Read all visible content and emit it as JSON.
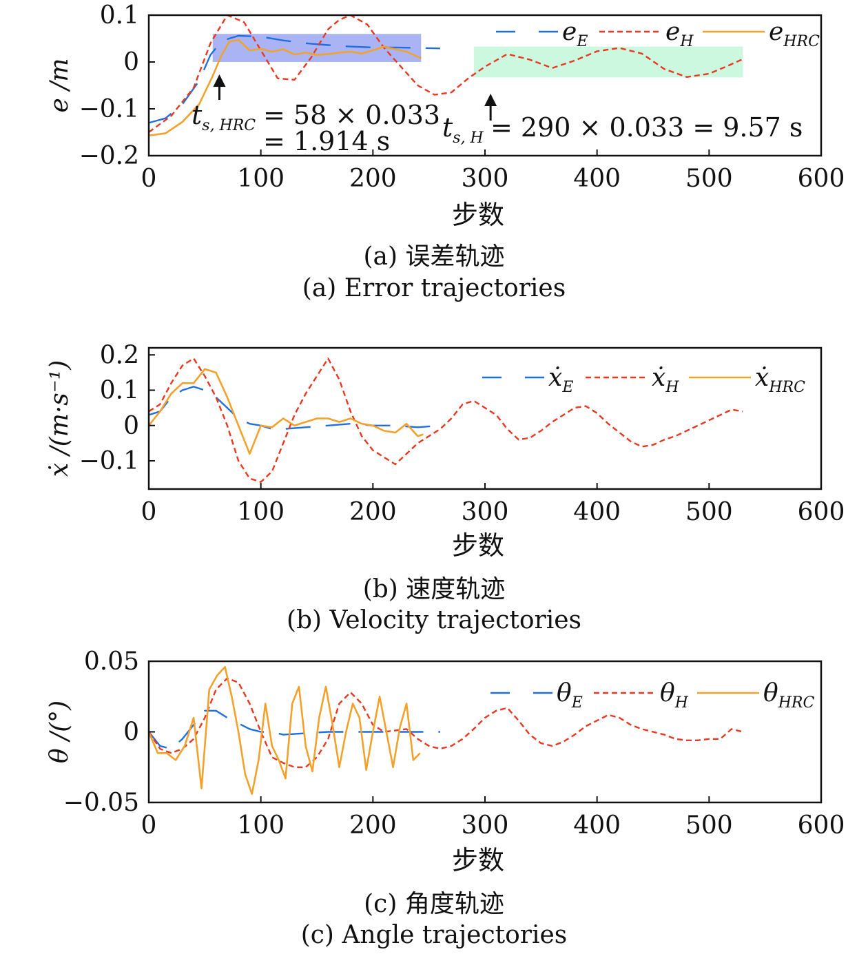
{
  "colors": {
    "E": "#1f6fe0",
    "H": "#e8381f",
    "HRC": "#f2a22c",
    "blueBox": "#8e9bf0",
    "greenBox": "#c6f7dc"
  },
  "chart_data": [
    {
      "type": "line",
      "panel": "a",
      "ylabel": "e /m",
      "xlabel": "步数",
      "caption_cn": "(a) 误差轨迹",
      "caption_en": "(a) Error trajectories",
      "xlim": [
        0,
        600
      ],
      "ylim": [
        -0.2,
        0.1
      ],
      "xticks": [
        "0",
        "100",
        "200",
        "300",
        "400",
        "500",
        "600"
      ],
      "yticks": [
        "0.1",
        "0",
        "−0.1",
        "−0.2"
      ],
      "legend": {
        "placement": "top-right",
        "entries": [
          {
            "key": "E",
            "base": "e",
            "sub": "E"
          },
          {
            "key": "H",
            "base": "e",
            "sub": "H"
          },
          {
            "key": "HRC",
            "base": "e",
            "sub": "HRC"
          }
        ]
      },
      "annotations": {
        "hrc_var": "t",
        "hrc_sub": "s, HRC",
        "hrc_line1": "= 58 × 0.033",
        "hrc_line2": "= 1.914 s",
        "h_var": "t",
        "h_sub": "s, H",
        "h_text": "= 290 × 0.033 = 9.57 s",
        "hrc_arrow_x": 63,
        "h_arrow_x": 305
      },
      "shaded_regions": [
        {
          "x": [
            57,
            243
          ],
          "y": [
            0.0,
            0.06
          ]
        },
        {
          "x": [
            290,
            530
          ],
          "y": [
            -0.033,
            0.033
          ]
        }
      ],
      "series": [
        {
          "key": "E",
          "name": "e_E",
          "x": [
            0,
            15,
            30,
            45,
            55,
            65,
            80,
            100,
            120,
            140,
            160,
            180,
            200,
            220,
            243,
            260
          ],
          "y": [
            -0.13,
            -0.12,
            -0.09,
            -0.04,
            0.015,
            0.045,
            0.056,
            0.054,
            0.046,
            0.04,
            0.036,
            0.033,
            0.031,
            0.031,
            0.03,
            0.029
          ]
        },
        {
          "key": "H",
          "name": "e_H",
          "x": [
            0,
            20,
            40,
            55,
            70,
            85,
            100,
            115,
            130,
            145,
            160,
            170,
            180,
            195,
            210,
            225,
            240,
            255,
            270,
            285,
            300,
            320,
            340,
            360,
            380,
            400,
            420,
            440,
            460,
            480,
            500,
            515,
            530
          ],
          "y": [
            -0.15,
            -0.115,
            -0.055,
            0.04,
            0.1,
            0.085,
            0.025,
            -0.035,
            -0.038,
            0.01,
            0.07,
            0.09,
            0.1,
            0.08,
            0.03,
            -0.01,
            -0.05,
            -0.07,
            -0.065,
            -0.035,
            -0.01,
            0.017,
            0.005,
            -0.013,
            0.003,
            0.023,
            0.03,
            0.018,
            -0.015,
            -0.032,
            -0.025,
            -0.01,
            0.006
          ]
        },
        {
          "key": "HRC",
          "name": "e_HRC",
          "x": [
            0,
            15,
            30,
            45,
            57,
            65,
            72,
            80,
            90,
            100,
            110,
            120,
            130,
            140,
            150,
            160,
            170,
            180,
            190,
            200,
            210,
            220,
            230,
            243
          ],
          "y": [
            -0.157,
            -0.152,
            -0.128,
            -0.09,
            -0.03,
            0.015,
            0.044,
            0.047,
            0.025,
            0.028,
            0.022,
            0.027,
            0.016,
            0.02,
            0.015,
            0.017,
            0.02,
            0.022,
            0.018,
            0.025,
            0.033,
            0.027,
            0.022,
            0.008
          ]
        }
      ]
    },
    {
      "type": "line",
      "panel": "b",
      "ylabel": "ẋ /(m·s⁻¹)",
      "xlabel": "步数",
      "caption_cn": "(b) 速度轨迹",
      "caption_en": "(b) Velocity trajectories",
      "xlim": [
        0,
        600
      ],
      "ylim": [
        -0.18,
        0.22
      ],
      "xticks": [
        "0",
        "100",
        "200",
        "300",
        "400",
        "500",
        "600"
      ],
      "yticks": [
        "0.2",
        "0.1",
        "0",
        "−0.1"
      ],
      "legend": {
        "placement": "top-right",
        "entries": [
          {
            "key": "E",
            "base": "ẋ",
            "sub": "E"
          },
          {
            "key": "H",
            "base": "ẋ",
            "sub": "H"
          },
          {
            "key": "HRC",
            "base": "ẋ",
            "sub": "HRC"
          }
        ]
      },
      "series": [
        {
          "key": "E",
          "name": "ẋ_E",
          "x": [
            0,
            10,
            20,
            30,
            40,
            50,
            60,
            70,
            80,
            90,
            100,
            110,
            120,
            140,
            160,
            180,
            200,
            220,
            240,
            260
          ],
          "y": [
            0.03,
            0.04,
            0.08,
            0.1,
            0.11,
            0.1,
            0.08,
            0.05,
            0.02,
            0.005,
            0.0,
            -0.01,
            -0.01,
            -0.005,
            0.0,
            0.005,
            0.0,
            0.0,
            -0.005,
            0.0
          ]
        },
        {
          "key": "H",
          "name": "ẋ_H",
          "x": [
            0,
            10,
            20,
            30,
            40,
            50,
            60,
            70,
            80,
            90,
            100,
            110,
            120,
            130,
            140,
            150,
            160,
            170,
            180,
            190,
            200,
            210,
            220,
            230,
            240,
            250,
            260,
            270,
            280,
            290,
            300,
            310,
            320,
            330,
            340,
            350,
            360,
            370,
            380,
            390,
            400,
            410,
            420,
            430,
            440,
            450,
            460,
            470,
            480,
            490,
            500,
            510,
            520,
            530
          ],
          "y": [
            0.04,
            0.06,
            0.12,
            0.17,
            0.19,
            0.14,
            0.08,
            0.0,
            -0.1,
            -0.15,
            -0.16,
            -0.13,
            -0.05,
            0.03,
            0.09,
            0.14,
            0.19,
            0.13,
            0.04,
            -0.03,
            -0.07,
            -0.09,
            -0.11,
            -0.08,
            -0.05,
            -0.03,
            -0.01,
            0.02,
            0.06,
            0.07,
            0.05,
            0.03,
            -0.01,
            -0.04,
            -0.035,
            -0.015,
            0.01,
            0.03,
            0.05,
            0.055,
            0.035,
            0.005,
            -0.02,
            -0.045,
            -0.06,
            -0.055,
            -0.04,
            -0.03,
            -0.015,
            0.0,
            0.015,
            0.03,
            0.045,
            0.04
          ]
        },
        {
          "key": "HRC",
          "name": "ẋ_HRC",
          "x": [
            0,
            10,
            20,
            30,
            40,
            50,
            60,
            70,
            80,
            90,
            100,
            110,
            120,
            130,
            140,
            150,
            160,
            170,
            180,
            190,
            200,
            210,
            220,
            230,
            240,
            245
          ],
          "y": [
            0.0,
            0.04,
            0.09,
            0.12,
            0.12,
            0.16,
            0.15,
            0.08,
            0.0,
            -0.08,
            0.0,
            -0.005,
            0.02,
            0.0,
            0.01,
            0.02,
            0.02,
            0.01,
            0.02,
            0.005,
            0.0,
            -0.015,
            -0.02,
            0.005,
            -0.03,
            -0.025
          ]
        }
      ]
    },
    {
      "type": "line",
      "panel": "c",
      "ylabel": "θ /(°)",
      "xlabel": "步数",
      "caption_cn": "(c) 角度轨迹",
      "caption_en": "(c) Angle trajectories",
      "xlim": [
        0,
        600
      ],
      "ylim": [
        -0.05,
        0.05
      ],
      "xticks": [
        "0",
        "100",
        "200",
        "300",
        "400",
        "500",
        "600"
      ],
      "yticks": [
        "0.05",
        "0",
        "−0.05"
      ],
      "legend": {
        "placement": "top-right",
        "entries": [
          {
            "key": "E",
            "base": "θ",
            "sub": "E"
          },
          {
            "key": "H",
            "base": "θ",
            "sub": "H"
          },
          {
            "key": "HRC",
            "base": "θ",
            "sub": "HRC"
          }
        ]
      },
      "series": [
        {
          "key": "E",
          "name": "θ_E",
          "x": [
            0,
            10,
            20,
            30,
            40,
            50,
            60,
            70,
            80,
            90,
            100,
            110,
            120,
            140,
            160,
            180,
            200,
            220,
            240,
            260
          ],
          "y": [
            0.0,
            -0.01,
            -0.012,
            -0.005,
            0.005,
            0.015,
            0.015,
            0.01,
            0.006,
            0.002,
            0.0,
            0.0,
            -0.002,
            -0.001,
            0.0,
            0.0,
            0.0,
            0.0,
            0.0,
            0.0
          ]
        },
        {
          "key": "H",
          "name": "θ_H",
          "x": [
            0,
            10,
            20,
            30,
            40,
            50,
            60,
            70,
            80,
            90,
            100,
            110,
            120,
            130,
            140,
            150,
            160,
            170,
            180,
            190,
            200,
            210,
            220,
            230,
            240,
            250,
            260,
            270,
            280,
            290,
            300,
            310,
            320,
            330,
            340,
            350,
            360,
            370,
            380,
            390,
            400,
            410,
            420,
            430,
            440,
            450,
            460,
            470,
            480,
            490,
            500,
            510,
            520,
            530
          ],
          "y": [
            0.0,
            -0.012,
            -0.015,
            -0.012,
            -0.005,
            0.01,
            0.03,
            0.038,
            0.035,
            0.02,
            0.0,
            -0.018,
            -0.022,
            -0.025,
            -0.025,
            -0.018,
            -0.005,
            0.02,
            0.028,
            0.02,
            0.005,
            0.0,
            0.001,
            0.002,
            -0.005,
            -0.01,
            -0.012,
            -0.01,
            -0.005,
            0.002,
            0.01,
            0.015,
            0.017,
            0.008,
            -0.002,
            -0.008,
            -0.01,
            -0.007,
            -0.002,
            0.004,
            0.008,
            0.012,
            0.01,
            0.005,
            0.002,
            0.0,
            -0.002,
            -0.005,
            -0.006,
            -0.006,
            -0.005,
            -0.005,
            0.002,
            0.0
          ]
        },
        {
          "key": "HRC",
          "name": "θ_HRC",
          "x": [
            0,
            8,
            16,
            24,
            32,
            40,
            47,
            54,
            61,
            68,
            74,
            80,
            86,
            92,
            98,
            104,
            110,
            116,
            122,
            128,
            134,
            140,
            146,
            152,
            158,
            164,
            170,
            176,
            182,
            188,
            194,
            200,
            206,
            212,
            218,
            224,
            230,
            236,
            242
          ],
          "y": [
            0.0,
            -0.015,
            -0.015,
            -0.02,
            -0.01,
            0.01,
            -0.04,
            0.03,
            0.04,
            0.046,
            0.025,
            0.0,
            -0.03,
            -0.044,
            -0.02,
            0.02,
            -0.01,
            -0.02,
            -0.033,
            0.02,
            0.032,
            -0.01,
            -0.028,
            0.01,
            0.032,
            0.005,
            -0.025,
            0.0,
            0.02,
            0.01,
            -0.027,
            0.0,
            0.025,
            0.0,
            -0.025,
            0.003,
            0.02,
            -0.02,
            -0.015
          ]
        }
      ]
    }
  ]
}
